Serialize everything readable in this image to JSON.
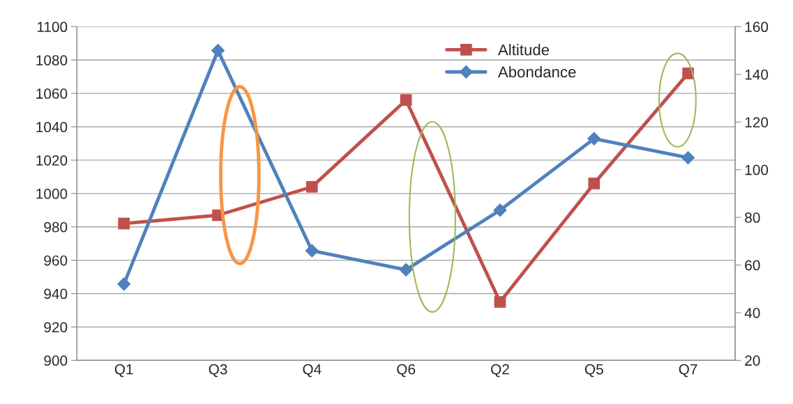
{
  "chart_data": {
    "type": "line",
    "categories": [
      "Q1",
      "Q3",
      "Q4",
      "Q6",
      "Q2",
      "Q5",
      "Q7"
    ],
    "series": [
      {
        "name": "Altitude",
        "color": "#c0504d",
        "marker": "square",
        "values": [
          982,
          987,
          1004,
          1056,
          935,
          1006,
          1072
        ]
      },
      {
        "name": "Abondance",
        "color": "#4f81bd",
        "marker": "diamond",
        "axis": "y2",
        "values": [
          52,
          150,
          66,
          58,
          83,
          113,
          105
        ]
      }
    ],
    "ylim": [
      900,
      1100
    ],
    "yticks": [
      900,
      920,
      940,
      960,
      980,
      1000,
      1020,
      1040,
      1060,
      1080,
      1100
    ],
    "y2lim": [
      20,
      160
    ],
    "y2ticks": [
      20,
      40,
      60,
      80,
      100,
      120,
      140,
      160
    ],
    "grid": "y",
    "legend": "top right",
    "line_style": "solid"
  }
}
